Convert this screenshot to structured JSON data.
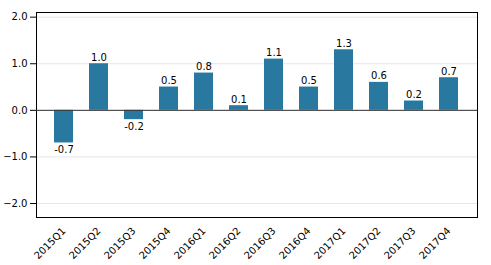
{
  "chart_data": {
    "type": "bar",
    "categories": [
      "2015Q1",
      "2015Q2",
      "2015Q3",
      "2015Q4",
      "2016Q1",
      "2016Q2",
      "2016Q3",
      "2016Q4",
      "2017Q1",
      "2017Q2",
      "2017Q3",
      "2017Q4"
    ],
    "values": [
      -0.7,
      1.0,
      -0.2,
      0.5,
      0.8,
      0.1,
      1.1,
      0.5,
      1.3,
      0.6,
      0.2,
      0.7
    ],
    "value_labels": [
      "-0.7",
      "1.0",
      "-0.2",
      "0.5",
      "0.8",
      "0.1",
      "1.1",
      "0.5",
      "1.3",
      "0.6",
      "0.2",
      "0.7"
    ],
    "color": "#2878a0",
    "ylim": [
      -2.3,
      2.1
    ],
    "yticks": [
      -2,
      -1,
      0,
      1,
      2
    ],
    "grid": true,
    "data_labels": true
  }
}
